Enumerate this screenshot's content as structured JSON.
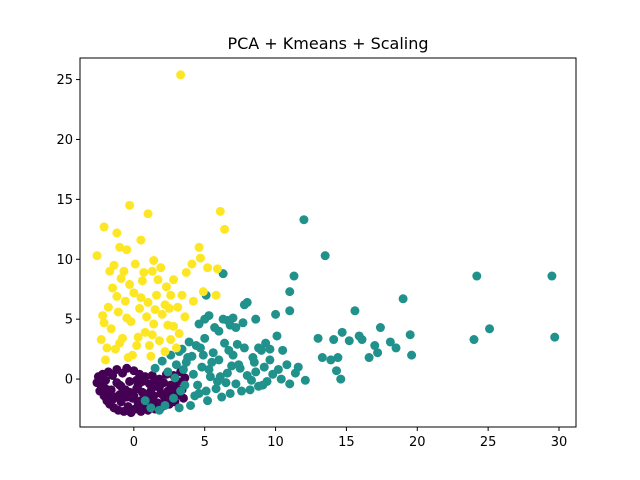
{
  "chart_data": {
    "type": "scatter",
    "title": "PCA + Kmeans + Scaling",
    "xlabel": "",
    "ylabel": "",
    "xlim": [
      -3.8,
      31.2
    ],
    "ylim": [
      -4.0,
      26.8
    ],
    "xticks": [
      0,
      5,
      10,
      15,
      20,
      25,
      30
    ],
    "yticks": [
      0,
      5,
      10,
      15,
      20,
      25
    ],
    "grid": false,
    "legend": "none",
    "series": [
      {
        "color": "#440154",
        "points": [
          [
            -2.6,
            -0.3
          ],
          [
            -2.5,
            0.2
          ],
          [
            -2.4,
            -1.0
          ],
          [
            -2.3,
            -0.6
          ],
          [
            -2.2,
            0.4
          ],
          [
            -2.1,
            -1.4
          ],
          [
            -2.0,
            -0.1
          ],
          [
            -1.9,
            -1.8
          ],
          [
            -1.8,
            0.6
          ],
          [
            -1.7,
            -2.1
          ],
          [
            -1.6,
            -0.9
          ],
          [
            -1.5,
            0.3
          ],
          [
            -1.4,
            -2.4
          ],
          [
            -1.3,
            -1.5
          ],
          [
            -1.2,
            0.8
          ],
          [
            -1.1,
            -2.6
          ],
          [
            -1.0,
            -0.5
          ],
          [
            -0.9,
            -1.9
          ],
          [
            -0.8,
            0.5
          ],
          [
            -0.7,
            -2.7
          ],
          [
            -0.6,
            -1.2
          ],
          [
            -0.5,
            0.9
          ],
          [
            -0.4,
            -2.3
          ],
          [
            -0.3,
            -0.2
          ],
          [
            -0.2,
            -2.8
          ],
          [
            -0.1,
            -1.6
          ],
          [
            0.0,
            0.7
          ],
          [
            0.1,
            -2.5
          ],
          [
            0.2,
            -0.8
          ],
          [
            0.3,
            -2.0
          ],
          [
            0.4,
            0.4
          ],
          [
            0.5,
            -2.7
          ],
          [
            0.6,
            -1.1
          ],
          [
            0.7,
            -2.4
          ],
          [
            0.8,
            0.2
          ],
          [
            0.9,
            -1.7
          ],
          [
            1.0,
            -2.6
          ],
          [
            1.1,
            -0.4
          ],
          [
            1.2,
            -2.2
          ],
          [
            1.3,
            0.3
          ],
          [
            1.4,
            -1.4
          ],
          [
            1.5,
            -2.5
          ],
          [
            1.6,
            -0.6
          ],
          [
            1.7,
            -2.0
          ],
          [
            1.8,
            0.0
          ],
          [
            1.9,
            -1.2
          ],
          [
            2.0,
            -2.3
          ],
          [
            2.1,
            -0.3
          ],
          [
            2.2,
            -1.8
          ],
          [
            2.3,
            0.4
          ],
          [
            2.4,
            -1.0
          ],
          [
            2.5,
            -2.1
          ],
          [
            2.6,
            -0.5
          ],
          [
            2.7,
            -1.5
          ],
          [
            2.8,
            0.3
          ],
          [
            2.9,
            -1.9
          ],
          [
            3.0,
            -0.8
          ],
          [
            3.1,
            -0.2
          ],
          [
            3.2,
            -1.3
          ],
          [
            3.3,
            0.6
          ],
          [
            3.4,
            -0.9
          ],
          [
            3.5,
            -1.6
          ],
          [
            3.6,
            0.1
          ],
          [
            -1.8,
            -1.2
          ],
          [
            -1.2,
            -0.3
          ],
          [
            -0.6,
            -0.9
          ],
          [
            0.0,
            -1.4
          ],
          [
            0.6,
            -0.2
          ],
          [
            1.2,
            -1.0
          ],
          [
            1.8,
            -0.7
          ],
          [
            -1.5,
            -1.7
          ],
          [
            -0.9,
            -0.6
          ],
          [
            -0.3,
            -1.1
          ],
          [
            0.3,
            -0.5
          ],
          [
            0.9,
            -1.3
          ],
          [
            1.5,
            -0.1
          ],
          [
            2.1,
            -1.4
          ],
          [
            -2.0,
            -0.8
          ],
          [
            -0.5,
            -1.5
          ],
          [
            0.5,
            -1.8
          ],
          [
            1.4,
            -1.9
          ],
          [
            2.6,
            -1.2
          ],
          [
            -1.0,
            -1.3
          ],
          [
            0.2,
            -0.1
          ]
        ]
      },
      {
        "color": "#21918c",
        "points": [
          [
            0.8,
            -1.8
          ],
          [
            1.2,
            -2.4
          ],
          [
            1.5,
            0.9
          ],
          [
            1.8,
            -2.6
          ],
          [
            2.0,
            1.5
          ],
          [
            2.2,
            -2.2
          ],
          [
            2.4,
            0.6
          ],
          [
            2.6,
            2.0
          ],
          [
            2.8,
            -1.6
          ],
          [
            3.0,
            1.2
          ],
          [
            3.2,
            -2.4
          ],
          [
            3.4,
            2.5
          ],
          [
            3.6,
            -0.5
          ],
          [
            3.8,
            1.8
          ],
          [
            4.0,
            -2.2
          ],
          [
            4.2,
            0.4
          ],
          [
            4.4,
            2.8
          ],
          [
            4.6,
            -1.2
          ],
          [
            4.8,
            1.0
          ],
          [
            5.0,
            3.4
          ],
          [
            5.2,
            -1.8
          ],
          [
            5.4,
            0.2
          ],
          [
            5.6,
            2.2
          ],
          [
            5.8,
            -0.8
          ],
          [
            6.0,
            1.6
          ],
          [
            6.2,
            -1.5
          ],
          [
            6.4,
            3.0
          ],
          [
            6.6,
            0.5
          ],
          [
            6.8,
            -1.2
          ],
          [
            7.0,
            2.0
          ],
          [
            7.2,
            -0.4
          ],
          [
            7.4,
            1.2
          ],
          [
            7.6,
            -1.0
          ],
          [
            7.8,
            2.6
          ],
          [
            8.0,
            0.3
          ],
          [
            8.2,
            -0.9
          ],
          [
            8.4,
            1.8
          ],
          [
            8.6,
            0.6
          ],
          [
            8.8,
            -0.6
          ],
          [
            9.0,
            2.4
          ],
          [
            9.2,
            1.0
          ],
          [
            9.4,
            -0.2
          ],
          [
            9.6,
            1.6
          ],
          [
            9.8,
            0.4
          ],
          [
            10.2,
            0.8
          ],
          [
            10.4,
            0.0
          ],
          [
            10.8,
            1.2
          ],
          [
            11.0,
            -0.4
          ],
          [
            3.5,
            0.8
          ],
          [
            4.5,
            -0.5
          ],
          [
            5.5,
            1.4
          ],
          [
            6.5,
            -0.3
          ],
          [
            7.5,
            0.9
          ],
          [
            4.1,
            1.9
          ],
          [
            5.1,
            -1.0
          ],
          [
            6.1,
            0.2
          ],
          [
            3.9,
            3.1
          ],
          [
            4.9,
            2.0
          ],
          [
            5.9,
            -0.2
          ],
          [
            6.9,
            1.1
          ],
          [
            8.3,
            -0.1
          ],
          [
            2.9,
            0.1
          ],
          [
            3.3,
            -1.0
          ],
          [
            4.3,
            -1.4
          ],
          [
            5.0,
            5.0
          ],
          [
            5.3,
            5.3
          ],
          [
            4.6,
            4.6
          ],
          [
            5.7,
            4.3
          ],
          [
            6.3,
            5.0
          ],
          [
            6.6,
            4.9
          ],
          [
            5.1,
            7.0
          ],
          [
            6.0,
            4.0
          ],
          [
            7.2,
            4.3
          ],
          [
            7.8,
            6.2
          ],
          [
            8.0,
            6.4
          ],
          [
            7.0,
            5.1
          ],
          [
            6.8,
            4.5
          ],
          [
            8.6,
            5.0
          ],
          [
            6.3,
            8.8
          ],
          [
            7.7,
            4.7
          ],
          [
            8.8,
            2.6
          ],
          [
            9.3,
            3.0
          ],
          [
            9.6,
            2.5
          ],
          [
            10.0,
            5.4
          ],
          [
            10.1,
            3.6
          ],
          [
            10.5,
            2.4
          ],
          [
            11.0,
            7.3
          ],
          [
            11.0,
            5.7
          ],
          [
            11.3,
            8.6
          ],
          [
            11.4,
            0.5
          ],
          [
            11.6,
            1.0
          ],
          [
            12.0,
            13.3
          ],
          [
            12.1,
            -0.1
          ],
          [
            13.0,
            3.4
          ],
          [
            13.3,
            1.8
          ],
          [
            13.5,
            10.3
          ],
          [
            13.9,
            1.6
          ],
          [
            14.1,
            3.3
          ],
          [
            14.3,
            0.7
          ],
          [
            14.4,
            1.8
          ],
          [
            14.6,
            0.0
          ],
          [
            14.7,
            3.9
          ],
          [
            15.2,
            3.2
          ],
          [
            15.6,
            5.7
          ],
          [
            15.9,
            3.6
          ],
          [
            16.1,
            3.3
          ],
          [
            16.6,
            1.8
          ],
          [
            17.0,
            2.8
          ],
          [
            17.2,
            2.2
          ],
          [
            17.4,
            4.3
          ],
          [
            18.1,
            3.1
          ],
          [
            18.5,
            2.6
          ],
          [
            19.0,
            6.7
          ],
          [
            19.5,
            3.7
          ],
          [
            19.6,
            2.0
          ],
          [
            24.0,
            3.3
          ],
          [
            24.2,
            8.6
          ],
          [
            25.1,
            4.2
          ],
          [
            29.5,
            8.6
          ],
          [
            29.7,
            3.5
          ],
          [
            3.2,
            2.3
          ],
          [
            3.7,
            1.4
          ],
          [
            4.7,
            2.6
          ],
          [
            5.3,
            0.8
          ],
          [
            6.7,
            2.4
          ],
          [
            7.3,
            2.9
          ],
          [
            8.5,
            1.4
          ],
          [
            9.1,
            -0.5
          ]
        ]
      },
      {
        "color": "#fde725",
        "points": [
          [
            -2.6,
            10.3
          ],
          [
            -2.1,
            12.7
          ],
          [
            -1.7,
            9.0
          ],
          [
            -1.2,
            12.2
          ],
          [
            -1.0,
            11.0
          ],
          [
            -0.5,
            10.8
          ],
          [
            -0.3,
            14.5
          ],
          [
            0.5,
            11.6
          ],
          [
            1.0,
            13.8
          ],
          [
            1.3,
            9.0
          ],
          [
            1.4,
            9.9
          ],
          [
            1.9,
            9.3
          ],
          [
            2.3,
            7.7
          ],
          [
            2.8,
            8.3
          ],
          [
            3.3,
            25.4
          ],
          [
            3.7,
            8.9
          ],
          [
            4.1,
            9.6
          ],
          [
            4.6,
            11.0
          ],
          [
            4.7,
            10.1
          ],
          [
            6.1,
            14.0
          ],
          [
            6.4,
            12.5
          ],
          [
            5.2,
            9.3
          ],
          [
            5.9,
            9.2
          ],
          [
            5.8,
            7.0
          ],
          [
            4.9,
            7.3
          ],
          [
            4.2,
            6.5
          ],
          [
            3.6,
            5.2
          ],
          [
            3.4,
            7.0
          ],
          [
            3.1,
            6.0
          ],
          [
            2.6,
            7.0
          ],
          [
            2.2,
            6.2
          ],
          [
            1.7,
            8.3
          ],
          [
            -2.2,
            5.3
          ],
          [
            -2.3,
            3.3
          ],
          [
            -2.0,
            1.6
          ],
          [
            -1.8,
            6.0
          ],
          [
            -1.6,
            4.2
          ],
          [
            -1.5,
            7.6
          ],
          [
            -1.3,
            2.5
          ],
          [
            -1.1,
            5.6
          ],
          [
            -0.9,
            8.4
          ],
          [
            -0.8,
            3.4
          ],
          [
            -0.6,
            6.5
          ],
          [
            -0.4,
            1.8
          ],
          [
            -0.2,
            4.8
          ],
          [
            0.0,
            7.2
          ],
          [
            0.2,
            2.8
          ],
          [
            0.4,
            5.9
          ],
          [
            0.6,
            8.2
          ],
          [
            0.8,
            3.9
          ],
          [
            1.0,
            6.4
          ],
          [
            1.2,
            1.9
          ],
          [
            1.4,
            4.6
          ],
          [
            1.6,
            7.0
          ],
          [
            1.8,
            3.2
          ],
          [
            2.0,
            5.4
          ],
          [
            2.2,
            2.3
          ],
          [
            2.4,
            4.5
          ],
          [
            2.6,
            3.3
          ],
          [
            2.8,
            4.4
          ],
          [
            3.0,
            2.6
          ],
          [
            3.2,
            3.8
          ],
          [
            -1.4,
            9.5
          ],
          [
            -0.7,
            9.0
          ],
          [
            0.1,
            9.6
          ],
          [
            0.7,
            8.9
          ],
          [
            -1.9,
            2.6
          ],
          [
            -1.0,
            3.0
          ],
          [
            0.3,
            3.5
          ],
          [
            1.1,
            2.8
          ],
          [
            -0.5,
            5.1
          ],
          [
            0.9,
            5.2
          ],
          [
            -1.2,
            6.9
          ],
          [
            0.5,
            6.8
          ],
          [
            1.5,
            5.8
          ],
          [
            -2.1,
            4.7
          ],
          [
            -0.1,
            2.0
          ],
          [
            2.5,
            5.9
          ],
          [
            1.3,
            3.7
          ],
          [
            -0.3,
            7.9
          ]
        ]
      }
    ]
  }
}
